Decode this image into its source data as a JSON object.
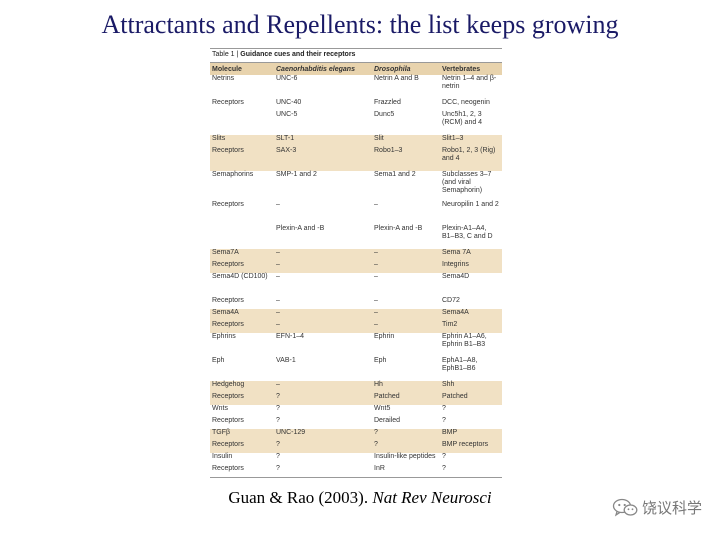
{
  "slide": {
    "title": "Attractants and Repellents: the list keeps growing",
    "citation_authors": "Guan & Rao (2003).",
    "citation_journal": "Nat Rev Neurosci",
    "watermark": "饶议科学",
    "watermark_icon": "wechat-icon"
  },
  "table": {
    "caption_label": "Table 1 |",
    "caption_title": "Guidance cues and their receptors",
    "headers": [
      "Molecule",
      "Caenorhabditis elegans",
      "Drosophila",
      "Vertebrates"
    ],
    "rows": [
      {
        "cells": [
          "Netrins",
          "UNC-6",
          "Netrin A and B",
          "Netrin 1–4 and β-netrin"
        ],
        "shade": false,
        "h": "r2"
      },
      {
        "cells": [
          "Receptors",
          "UNC-40",
          "Frazzled",
          "DCC, neogenin"
        ],
        "shade": false,
        "h": "r1"
      },
      {
        "cells": [
          "",
          "UNC-5",
          "Dunc5",
          "Unc5h1, 2, 3 (RCM) and 4"
        ],
        "shade": false,
        "h": "r2"
      },
      {
        "cells": [
          "Slits",
          "SLT-1",
          "Slit",
          "Slit1–3"
        ],
        "shade": true,
        "h": "r1"
      },
      {
        "cells": [
          "Receptors",
          "SAX-3",
          "Robo1–3",
          "Robo1, 2, 3 (Rig) and 4"
        ],
        "shade": true,
        "h": "r2"
      },
      {
        "cells": [
          "Semaphorins",
          "SMP-1 and 2",
          "Sema1 and 2",
          "Subclasses 3–7 (and viral Semaphorin)"
        ],
        "shade": false,
        "h": "r3"
      },
      {
        "cells": [
          "Receptors",
          "–",
          "–",
          "Neuropilin 1 and 2"
        ],
        "shade": false,
        "h": "r2"
      },
      {
        "cells": [
          "",
          "Plexin-A and -B",
          "Plexin-A and -B",
          "Plexin-A1–A4, B1–B3, C and D"
        ],
        "shade": false,
        "h": "r2"
      },
      {
        "cells": [
          "Sema7A",
          "–",
          "–",
          "Sema 7A"
        ],
        "shade": true,
        "h": "r1"
      },
      {
        "cells": [
          "Receptors",
          "–",
          "–",
          "Integrins"
        ],
        "shade": true,
        "h": "r1"
      },
      {
        "cells": [
          "Sema4D (CD100)",
          "–",
          "–",
          "Sema4D"
        ],
        "shade": false,
        "h": "r2"
      },
      {
        "cells": [
          "Receptors",
          "–",
          "–",
          "CD72"
        ],
        "shade": false,
        "h": "r1"
      },
      {
        "cells": [
          "Sema4A",
          "–",
          "–",
          "Sema4A"
        ],
        "shade": true,
        "h": "r1"
      },
      {
        "cells": [
          "Receptors",
          "–",
          "–",
          "Tim2"
        ],
        "shade": true,
        "h": "r1"
      },
      {
        "cells": [
          "Ephrins",
          "EFN-1–4",
          "Ephrin",
          "Ephrin A1–A6, Ephrin B1–B3"
        ],
        "shade": false,
        "h": "r2"
      },
      {
        "cells": [
          "Eph",
          "VAB-1",
          "Eph",
          "EphA1–A8, EphB1–B6"
        ],
        "shade": false,
        "h": "r2"
      },
      {
        "cells": [
          "Hedgehog",
          "–",
          "Hh",
          "Shh"
        ],
        "shade": true,
        "h": "r1"
      },
      {
        "cells": [
          "Receptors",
          "?",
          "Patched",
          "Patched"
        ],
        "shade": true,
        "h": "r1"
      },
      {
        "cells": [
          "Wnts",
          "?",
          "Wnt5",
          "?"
        ],
        "shade": false,
        "h": "r1"
      },
      {
        "cells": [
          "Receptors",
          "?",
          "Derailed",
          "?"
        ],
        "shade": false,
        "h": "r1"
      },
      {
        "cells": [
          "TGFβ",
          "UNC-129",
          "?",
          "BMP"
        ],
        "shade": true,
        "h": "r1"
      },
      {
        "cells": [
          "Receptors",
          "?",
          "?",
          "BMP receptors"
        ],
        "shade": true,
        "h": "r1"
      },
      {
        "cells": [
          "Insulin",
          "?",
          "Insulin-like peptides",
          "?"
        ],
        "shade": false,
        "h": "r1"
      },
      {
        "cells": [
          "Receptors",
          "?",
          "InR",
          "?"
        ],
        "shade": false,
        "h": "r1"
      }
    ]
  }
}
